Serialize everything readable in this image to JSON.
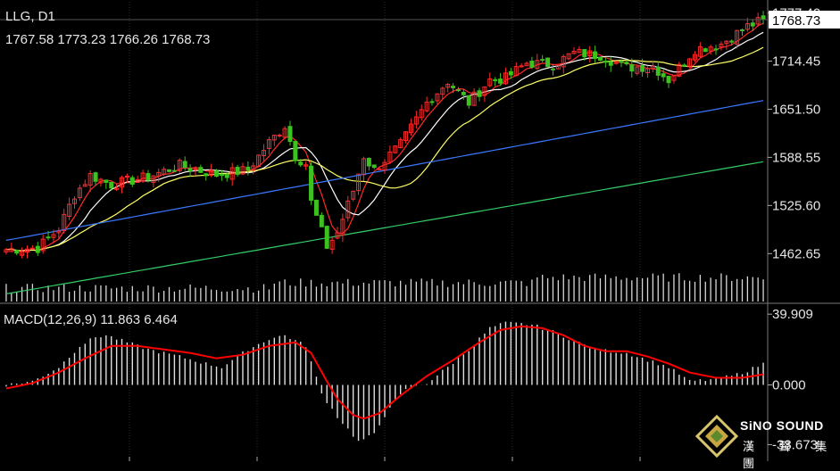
{
  "header": {
    "symbol": "LLG, D1",
    "ohlc": "1767.58 1773.23 1766.26 1768.73"
  },
  "macd_panel": {
    "label": "MACD(12,26,9) 11.863 6.464"
  },
  "logo": {
    "brand": "SiNO SOUND",
    "sub": "漢 聲 集 團"
  },
  "colors": {
    "background": "#000000",
    "bull": "#ff2a2a",
    "bear": "#3cc21e",
    "ma5": "#ff2a2a",
    "ma10": "#ffffff",
    "ma20": "#ffff66",
    "ma60": "#3a78ff",
    "ma120": "#33cc66",
    "macd_signal": "#ff0000",
    "macd_hist": "#e0e0e0",
    "axis_text": "#e6e6e6",
    "current_price_box": "#ffffff"
  },
  "chart_data": [
    {
      "type": "candlestick",
      "title": "LLG, D1",
      "ylim": [
        1400,
        1792
      ],
      "y_ticks": [
        "1777.40",
        "1714.45",
        "1651.50",
        "1588.55",
        "1525.60",
        "1462.65"
      ],
      "current_price": "1768.73",
      "moving_average_colors": [
        "red",
        "white",
        "yellow",
        "blue",
        "green"
      ],
      "volume_panel": true,
      "price_path": [
        [
          0,
          1468
        ],
        [
          6,
          1470
        ],
        [
          10,
          1495
        ],
        [
          13,
          1540
        ],
        [
          16,
          1565
        ],
        [
          20,
          1553
        ],
        [
          27,
          1563
        ],
        [
          33,
          1578
        ],
        [
          40,
          1566
        ],
        [
          46,
          1572
        ],
        [
          50,
          1608
        ],
        [
          53,
          1630
        ],
        [
          55,
          1590
        ],
        [
          57,
          1580
        ],
        [
          58,
          1530
        ],
        [
          61,
          1472
        ],
        [
          63,
          1490
        ],
        [
          66,
          1545
        ],
        [
          68,
          1590
        ],
        [
          70,
          1572
        ],
        [
          75,
          1605
        ],
        [
          80,
          1660
        ],
        [
          84,
          1688
        ],
        [
          88,
          1660
        ],
        [
          92,
          1690
        ],
        [
          95,
          1692
        ],
        [
          99,
          1712
        ],
        [
          104,
          1710
        ],
        [
          108,
          1725
        ],
        [
          113,
          1722
        ],
        [
          118,
          1706
        ],
        [
          123,
          1708
        ],
        [
          126,
          1690
        ],
        [
          131,
          1730
        ],
        [
          136,
          1737
        ],
        [
          141,
          1760
        ],
        [
          144,
          1768
        ]
      ]
    },
    {
      "type": "bar",
      "title": "MACD(12,26,9) 11.863 6.464",
      "ylim": [
        -38,
        40
      ],
      "y_ticks": [
        "39.909",
        "0.000",
        "-33.673"
      ],
      "hist_path": [
        [
          0,
          0
        ],
        [
          5,
          2
        ],
        [
          10,
          10
        ],
        [
          14,
          22
        ],
        [
          17,
          27
        ],
        [
          19,
          28
        ],
        [
          23,
          24
        ],
        [
          27,
          20
        ],
        [
          33,
          16
        ],
        [
          38,
          12
        ],
        [
          41,
          10
        ],
        [
          46,
          20
        ],
        [
          50,
          26
        ],
        [
          53,
          28
        ],
        [
          57,
          22
        ],
        [
          60,
          -5
        ],
        [
          63,
          -18
        ],
        [
          67,
          -32
        ],
        [
          70,
          -28
        ],
        [
          73,
          -12
        ],
        [
          76,
          -3
        ],
        [
          80,
          1
        ],
        [
          84,
          10
        ],
        [
          88,
          20
        ],
        [
          92,
          32
        ],
        [
          95,
          35
        ],
        [
          100,
          34
        ],
        [
          104,
          30
        ],
        [
          108,
          25
        ],
        [
          112,
          20
        ],
        [
          118,
          18
        ],
        [
          122,
          14
        ],
        [
          126,
          10
        ],
        [
          130,
          2
        ],
        [
          134,
          3
        ],
        [
          138,
          5
        ],
        [
          141,
          8
        ],
        [
          144,
          12
        ]
      ],
      "signal_path": [
        [
          0,
          -2
        ],
        [
          5,
          1
        ],
        [
          10,
          7
        ],
        [
          15,
          15
        ],
        [
          20,
          22
        ],
        [
          25,
          22
        ],
        [
          30,
          20
        ],
        [
          35,
          18
        ],
        [
          40,
          15
        ],
        [
          45,
          17
        ],
        [
          50,
          22
        ],
        [
          55,
          24
        ],
        [
          58,
          18
        ],
        [
          61,
          2
        ],
        [
          63,
          -8
        ],
        [
          66,
          -17
        ],
        [
          68,
          -19
        ],
        [
          71,
          -16
        ],
        [
          75,
          -6
        ],
        [
          80,
          5
        ],
        [
          85,
          14
        ],
        [
          90,
          24
        ],
        [
          94,
          31
        ],
        [
          98,
          33
        ],
        [
          102,
          32
        ],
        [
          106,
          28
        ],
        [
          110,
          22
        ],
        [
          114,
          19
        ],
        [
          118,
          19
        ],
        [
          122,
          16
        ],
        [
          126,
          12
        ],
        [
          130,
          7
        ],
        [
          135,
          4
        ],
        [
          140,
          4
        ],
        [
          144,
          6
        ]
      ]
    }
  ]
}
